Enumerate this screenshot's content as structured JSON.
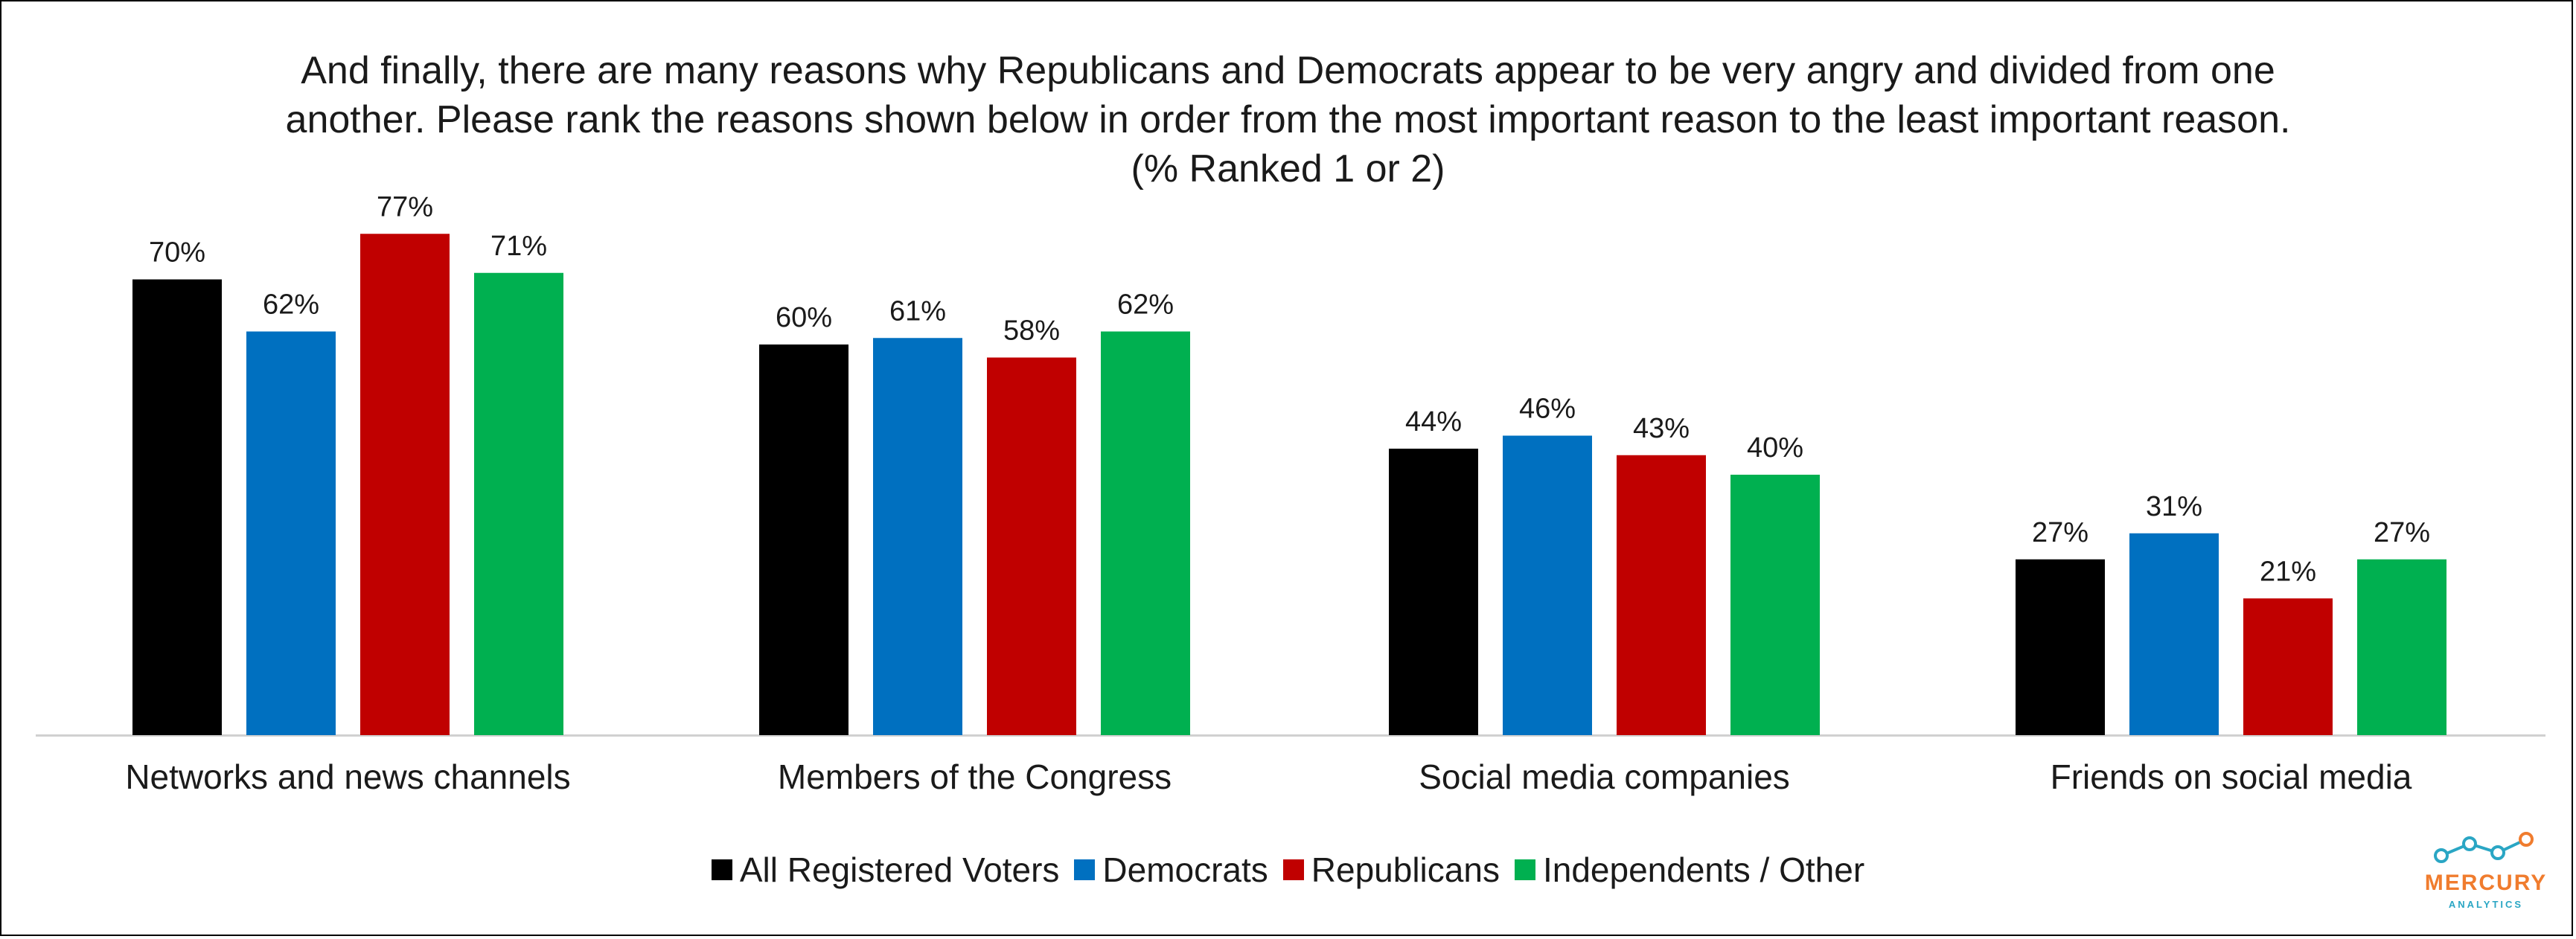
{
  "title": {
    "line1": "And finally, there are many reasons why Republicans and Democrats appear to be very angry and divided from one",
    "line2": "another. Please rank the reasons shown below in order from the most important reason to the least important reason.",
    "line3": "(% Ranked 1 or 2)"
  },
  "chart_data": {
    "type": "bar",
    "title": "And finally, there are many reasons why Republicans and Democrats appear to be very angry and divided from one another. Please rank the reasons shown below in order from the most important reason to the least important reason. (% Ranked 1 or 2)",
    "categories": [
      "Networks and news channels",
      "Members of the Congress",
      "Social media companies",
      "Friends on social media"
    ],
    "series": [
      {
        "name": "All Registered Voters",
        "color": "#000000",
        "values": [
          70,
          60,
          44,
          27
        ]
      },
      {
        "name": "Democrats",
        "color": "#0070C0",
        "values": [
          62,
          61,
          46,
          31
        ]
      },
      {
        "name": "Republicans",
        "color": "#C00000",
        "values": [
          77,
          58,
          43,
          21
        ]
      },
      {
        "name": "Independents / Other",
        "color": "#00B050",
        "values": [
          71,
          62,
          40,
          27
        ]
      }
    ],
    "value_suffix": "%",
    "ylim": [
      0,
      85
    ],
    "grid": false,
    "legend_position": "bottom-center",
    "xlabel": "",
    "ylabel": ""
  },
  "logo": {
    "name": "MERCURY",
    "sub": "ANALYTICS",
    "name_color": "#F07C2E",
    "sub_color": "#2AA6C4"
  }
}
